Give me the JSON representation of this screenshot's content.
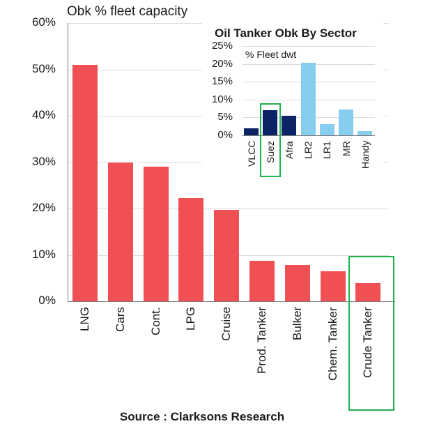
{
  "main": {
    "title": "Obk % fleet capacity",
    "yticks": [
      "0%",
      "10%",
      "20%",
      "30%",
      "40%",
      "50%",
      "60%"
    ],
    "source": "Source : Clarksons Research",
    "highlight_label": "Crude Tanker"
  },
  "inset": {
    "title": "Oil Tanker Obk By Sector",
    "subtitle": "% Fleet dwt",
    "yticks": [
      "0%",
      "5%",
      "10%",
      "15%",
      "20%",
      "25%"
    ],
    "highlight_label": "Suez"
  },
  "colors": {
    "main_bar": "#f05053",
    "inset_crude": "#0b2466",
    "inset_product": "#87cdee",
    "highlight_box": "#22b14c",
    "grid": "#dcdcdc"
  },
  "chart_data": [
    {
      "type": "bar",
      "title": "Obk % fleet capacity",
      "xlabel": "",
      "ylabel": "Obk % fleet capacity",
      "categories": [
        "LNG",
        "Cars",
        "Cont.",
        "LPG",
        "Cruise",
        "Prod. Tanker",
        "Bulker",
        "Chem. Tanker",
        "Crude Tanker"
      ],
      "values": [
        51,
        30,
        29,
        22.3,
        19.7,
        8.7,
        7.8,
        6.5,
        3.9
      ],
      "unit": "%",
      "ylim": [
        0,
        60
      ],
      "yticks": [
        0,
        10,
        20,
        30,
        40,
        50,
        60
      ],
      "grid": true,
      "annotations": [
        "Green box highlights Crude Tanker"
      ],
      "source": "Source : Clarksons Research"
    },
    {
      "type": "bar",
      "title": "Oil Tanker Obk By Sector",
      "ylabel": "% Fleet dwt",
      "categories": [
        "VLCC",
        "Suez",
        "Afra",
        "LR2",
        "LR1",
        "MR",
        "Handy"
      ],
      "values": [
        2.0,
        7.0,
        5.5,
        20.3,
        3.1,
        7.2,
        1.1
      ],
      "unit": "%",
      "ylim": [
        0,
        25
      ],
      "yticks": [
        0,
        5,
        10,
        15,
        20,
        25
      ],
      "grid": true,
      "series_colors": {
        "crude": [
          "VLCC",
          "Suez",
          "Afra"
        ],
        "product": [
          "LR2",
          "LR1",
          "MR",
          "Handy"
        ]
      },
      "annotations": [
        "Green box highlights Suez"
      ]
    }
  ]
}
